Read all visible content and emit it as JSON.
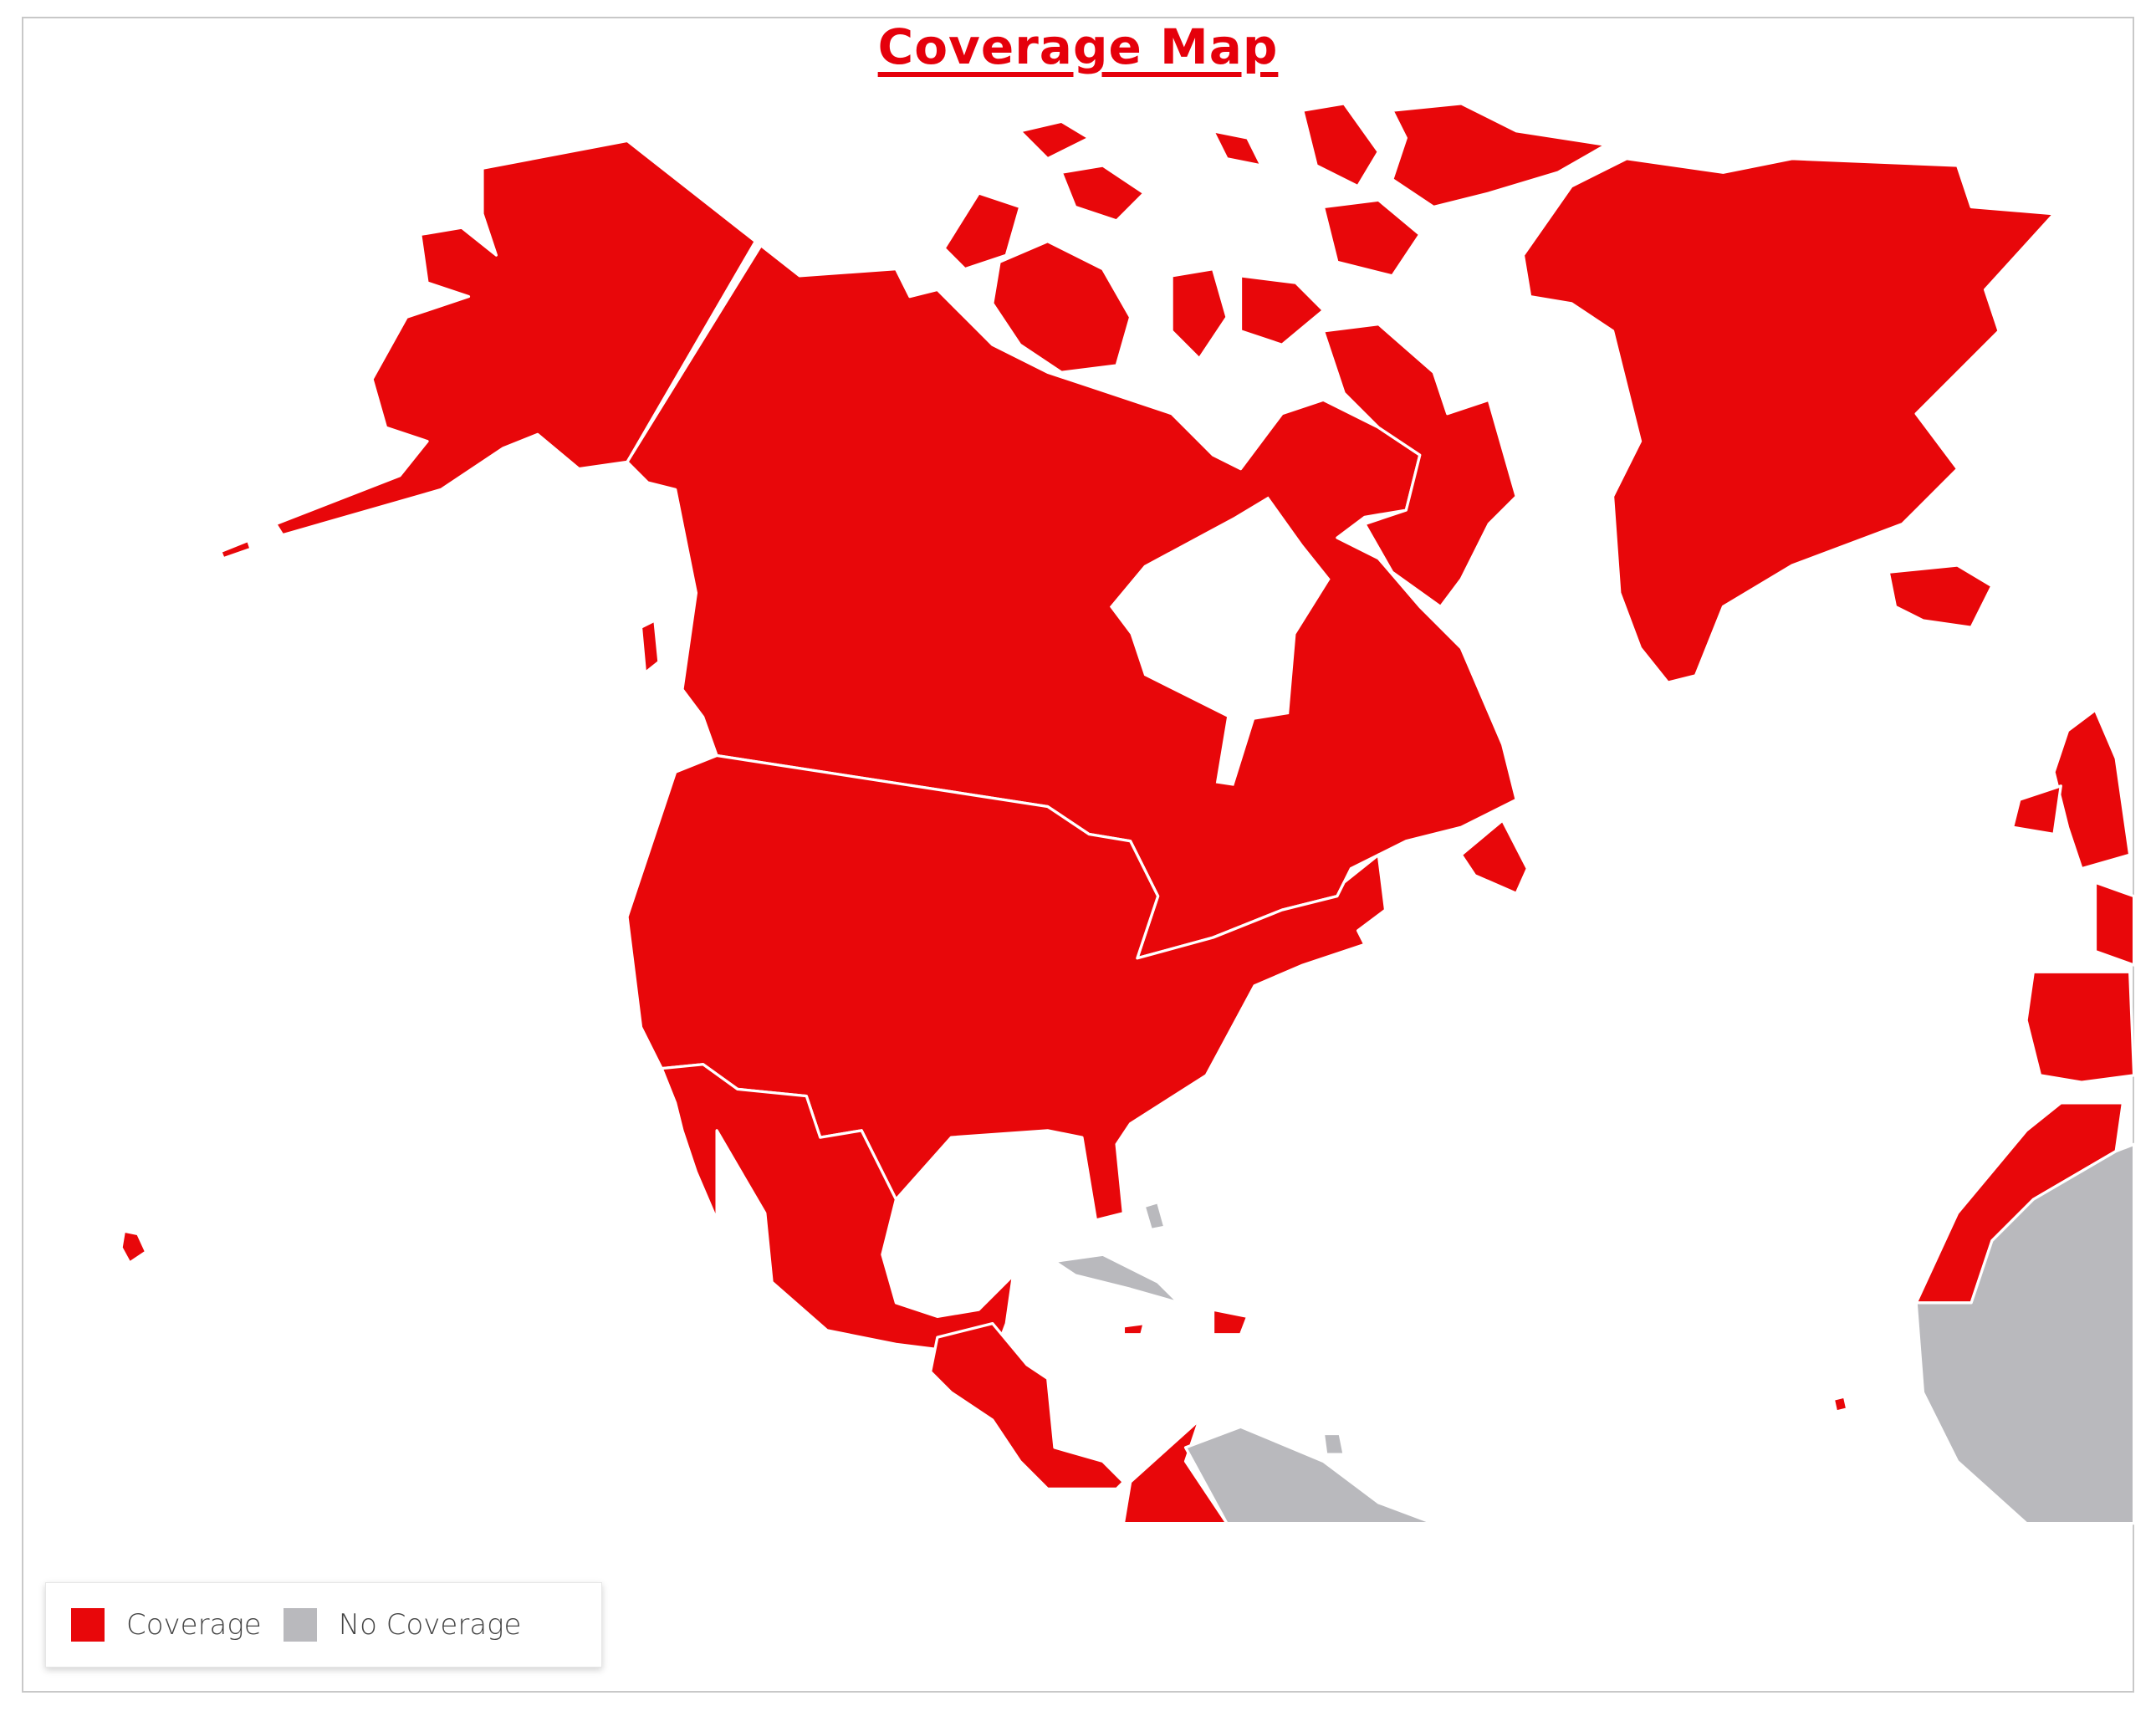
{
  "title": "Coverage Map",
  "legend": {
    "items": [
      {
        "label": "Coverage",
        "color": "#e8070a"
      },
      {
        "label": "No Coverage",
        "color": "#b9b9bd"
      }
    ]
  },
  "colors": {
    "border": "#ffffff",
    "background": "#ffffff"
  }
}
